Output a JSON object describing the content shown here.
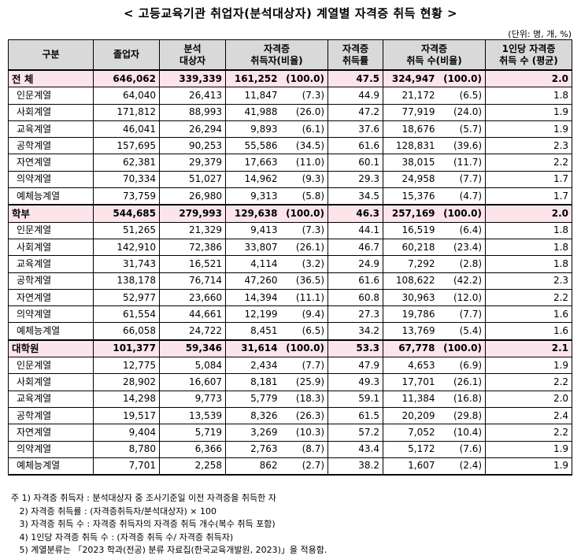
{
  "title": "< 고등교육기관 취업자(분석대상자) 계열별 자격증 취득 현황 >",
  "unit": "(단위: 명, 개, %)",
  "headers": [
    "구분",
    "졸업자",
    "분석\n대상자",
    "자격증\n취득자(비율)",
    "자격증\n취득률",
    "자격증\n취득 수(비율)",
    "1인당 자격증\n취득 수 (평균)"
  ],
  "rows": [
    {
      "label": "전 체",
      "grads": "646,062",
      "targets": "339,339",
      "acq": "161,252",
      "acq_pct": "(100.0)",
      "rate": "47.5",
      "count": "324,947",
      "count_pct": "(100.0)",
      "avg": "2.0",
      "sum": true
    },
    {
      "label": "인문계열",
      "grads": "64,040",
      "targets": "26,413",
      "acq": "11,847",
      "acq_pct": "(7.3)",
      "rate": "44.9",
      "count": "21,172",
      "count_pct": "(6.5)",
      "avg": "1.8"
    },
    {
      "label": "사회계열",
      "grads": "171,812",
      "targets": "88,993",
      "acq": "41,988",
      "acq_pct": "(26.0)",
      "rate": "47.2",
      "count": "77,919",
      "count_pct": "(24.0)",
      "avg": "1.9"
    },
    {
      "label": "교육계열",
      "grads": "46,041",
      "targets": "26,294",
      "acq": "9,893",
      "acq_pct": "(6.1)",
      "rate": "37.6",
      "count": "18,676",
      "count_pct": "(5.7)",
      "avg": "1.9"
    },
    {
      "label": "공학계열",
      "grads": "157,695",
      "targets": "90,253",
      "acq": "55,586",
      "acq_pct": "(34.5)",
      "rate": "61.6",
      "count": "128,831",
      "count_pct": "(39.6)",
      "avg": "2.3"
    },
    {
      "label": "자연계열",
      "grads": "62,381",
      "targets": "29,379",
      "acq": "17,663",
      "acq_pct": "(11.0)",
      "rate": "60.1",
      "count": "38,015",
      "count_pct": "(11.7)",
      "avg": "2.2"
    },
    {
      "label": "의약계열",
      "grads": "70,334",
      "targets": "51,027",
      "acq": "14,962",
      "acq_pct": "(9.3)",
      "rate": "29.3",
      "count": "24,958",
      "count_pct": "(7.7)",
      "avg": "1.7"
    },
    {
      "label": "예체능계열",
      "grads": "73,759",
      "targets": "26,980",
      "acq": "9,313",
      "acq_pct": "(5.8)",
      "rate": "34.5",
      "count": "15,376",
      "count_pct": "(4.7)",
      "avg": "1.7",
      "end": true
    },
    {
      "label": "학부",
      "grads": "544,685",
      "targets": "279,993",
      "acq": "129,638",
      "acq_pct": "(100.0)",
      "rate": "46.3",
      "count": "257,169",
      "count_pct": "(100.0)",
      "avg": "2.0",
      "sum": true
    },
    {
      "label": "인문계열",
      "grads": "51,265",
      "targets": "21,329",
      "acq": "9,413",
      "acq_pct": "(7.3)",
      "rate": "44.1",
      "count": "16,519",
      "count_pct": "(6.4)",
      "avg": "1.8"
    },
    {
      "label": "사회계열",
      "grads": "142,910",
      "targets": "72,386",
      "acq": "33,807",
      "acq_pct": "(26.1)",
      "rate": "46.7",
      "count": "60,218",
      "count_pct": "(23.4)",
      "avg": "1.8"
    },
    {
      "label": "교육계열",
      "grads": "31,743",
      "targets": "16,521",
      "acq": "4,114",
      "acq_pct": "(3.2)",
      "rate": "24.9",
      "count": "7,292",
      "count_pct": "(2.8)",
      "avg": "1.8"
    },
    {
      "label": "공학계열",
      "grads": "138,178",
      "targets": "76,714",
      "acq": "47,260",
      "acq_pct": "(36.5)",
      "rate": "61.6",
      "count": "108,622",
      "count_pct": "(42.2)",
      "avg": "2.3"
    },
    {
      "label": "자연계열",
      "grads": "52,977",
      "targets": "23,660",
      "acq": "14,394",
      "acq_pct": "(11.1)",
      "rate": "60.8",
      "count": "30,963",
      "count_pct": "(12.0)",
      "avg": "2.2"
    },
    {
      "label": "의약계열",
      "grads": "61,554",
      "targets": "44,661",
      "acq": "12,199",
      "acq_pct": "(9.4)",
      "rate": "27.3",
      "count": "19,786",
      "count_pct": "(7.7)",
      "avg": "1.6"
    },
    {
      "label": "예체능계열",
      "grads": "66,058",
      "targets": "24,722",
      "acq": "8,451",
      "acq_pct": "(6.5)",
      "rate": "34.2",
      "count": "13,769",
      "count_pct": "(5.4)",
      "avg": "1.6",
      "end": true
    },
    {
      "label": "대학원",
      "grads": "101,377",
      "targets": "59,346",
      "acq": "31,614",
      "acq_pct": "(100.0)",
      "rate": "53.3",
      "count": "67,778",
      "count_pct": "(100.0)",
      "avg": "2.1",
      "sum": true
    },
    {
      "label": "인문계열",
      "grads": "12,775",
      "targets": "5,084",
      "acq": "2,434",
      "acq_pct": "(7.7)",
      "rate": "47.9",
      "count": "4,653",
      "count_pct": "(6.9)",
      "avg": "1.9"
    },
    {
      "label": "사회계열",
      "grads": "28,902",
      "targets": "16,607",
      "acq": "8,181",
      "acq_pct": "(25.9)",
      "rate": "49.3",
      "count": "17,701",
      "count_pct": "(26.1)",
      "avg": "2.2"
    },
    {
      "label": "교육계열",
      "grads": "14,298",
      "targets": "9,773",
      "acq": "5,779",
      "acq_pct": "(18.3)",
      "rate": "59.1",
      "count": "11,384",
      "count_pct": "(16.8)",
      "avg": "2.0"
    },
    {
      "label": "공학계열",
      "grads": "19,517",
      "targets": "13,539",
      "acq": "8,326",
      "acq_pct": "(26.3)",
      "rate": "61.5",
      "count": "20,209",
      "count_pct": "(29.8)",
      "avg": "2.4"
    },
    {
      "label": "자연계열",
      "grads": "9,404",
      "targets": "5,719",
      "acq": "3,269",
      "acq_pct": "(10.3)",
      "rate": "57.2",
      "count": "7,052",
      "count_pct": "(10.4)",
      "avg": "2.2"
    },
    {
      "label": "의약계열",
      "grads": "8,780",
      "targets": "6,366",
      "acq": "2,763",
      "acq_pct": "(8.7)",
      "rate": "43.4",
      "count": "5,172",
      "count_pct": "(7.6)",
      "avg": "1.9"
    },
    {
      "label": "예체능계열",
      "grads": "7,701",
      "targets": "2,258",
      "acq": "862",
      "acq_pct": "(2.7)",
      "rate": "38.2",
      "count": "1,607",
      "count_pct": "(2.4)",
      "avg": "1.9",
      "end": true
    }
  ],
  "notes": [
    "주 1) 자격증 취득자 : 분석대상자 중 조사기준일 이전 자격증을 취득한 자",
    "   2) 자격증 취득률 : (자격증취득자/분석대상자) × 100",
    "   3) 자격증 취득 수 : 자격증 취득자의 자격증 취득 개수(복수 취득 포함)",
    "   4) 1인당 자격증 취득 수 : (자격증 취득 수/ 자격증 취득자)",
    "   5) 계열분류는 「2023 학과(전공) 분류 자료집(한국교육개발원, 2023)」을 적용함."
  ]
}
